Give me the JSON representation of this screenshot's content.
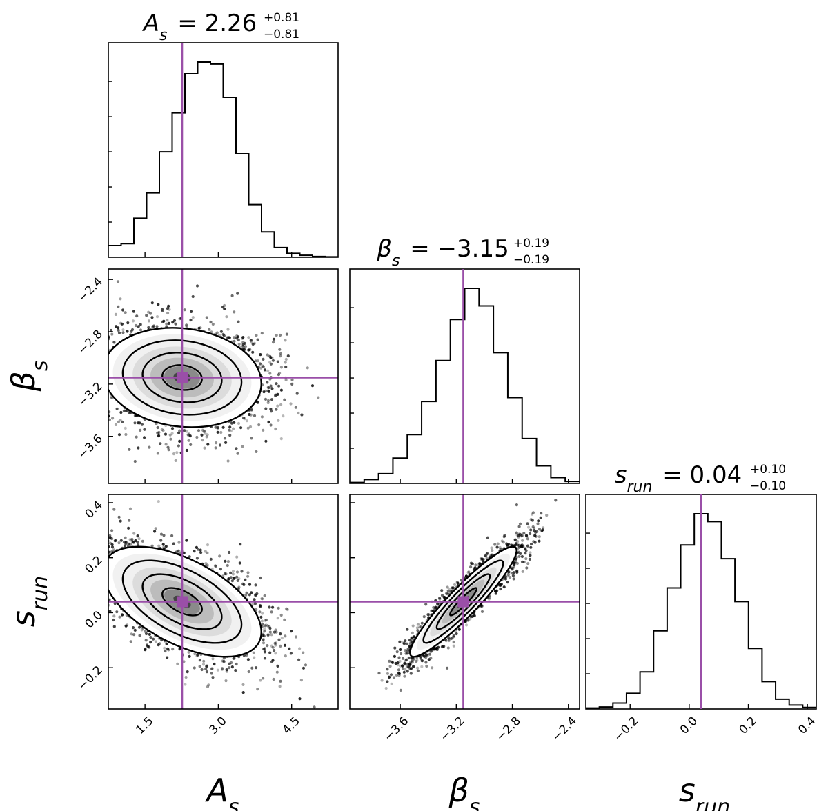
{
  "chart_data": {
    "type": "corner",
    "truth_color": "#9a4fa8",
    "parameters": [
      {
        "name": "A_s",
        "axis_label": "A",
        "axis_sub": "s",
        "axis_greek": false,
        "median": 2.26,
        "err_plus": 0.81,
        "err_minus": 0.81,
        "title_value": "2.26",
        "title_plus": "+0.81",
        "title_minus": "−0.81",
        "range": [
          0.75,
          5.45
        ],
        "ticks": [
          1.5,
          3.0,
          4.5
        ],
        "tick_labels": [
          "1.5",
          "3.0",
          "4.5"
        ],
        "hist": [
          0.06,
          0.07,
          0.2,
          0.33,
          0.54,
          0.74,
          0.94,
          1.0,
          0.99,
          0.82,
          0.53,
          0.27,
          0.13,
          0.05,
          0.02,
          0.01,
          0.004,
          0.002
        ]
      },
      {
        "name": "beta_s",
        "axis_label": "β",
        "axis_sub": "s",
        "axis_greek": true,
        "median": -3.15,
        "err_plus": 0.19,
        "err_minus": 0.19,
        "title_value": "−3.15",
        "title_plus": "+0.19",
        "title_minus": "−0.19",
        "range": [
          -3.96,
          -2.32
        ],
        "ticks": [
          -3.6,
          -3.2,
          -2.8,
          -2.4
        ],
        "tick_labels": [
          "−3.6",
          "−3.2",
          "−2.8",
          "−2.4"
        ],
        "hist": [
          0.005,
          0.02,
          0.05,
          0.13,
          0.25,
          0.42,
          0.63,
          0.84,
          1.0,
          0.91,
          0.67,
          0.44,
          0.23,
          0.09,
          0.03,
          0.01
        ]
      },
      {
        "name": "s_run",
        "axis_label": "s",
        "axis_sub": "run",
        "axis_greek": false,
        "median": 0.04,
        "err_plus": 0.1,
        "err_minus": 0.1,
        "title_value": "0.04",
        "title_plus": "+0.10",
        "title_minus": "−0.10",
        "range": [
          -0.35,
          0.43
        ],
        "ticks": [
          -0.2,
          0.0,
          0.2,
          0.4
        ],
        "tick_labels": [
          "−0.2",
          "0.0",
          "0.2",
          "0.4"
        ],
        "hist": [
          0.005,
          0.01,
          0.03,
          0.08,
          0.19,
          0.4,
          0.62,
          0.84,
          1.0,
          0.96,
          0.77,
          0.55,
          0.31,
          0.14,
          0.05,
          0.02,
          0.008
        ]
      }
    ],
    "pairs": [
      {
        "x": 0,
        "y": 1,
        "center": [
          2.26,
          -3.15
        ],
        "sigma": [
          0.81,
          0.19
        ],
        "rho": -0.12
      },
      {
        "x": 0,
        "y": 2,
        "center": [
          2.26,
          0.04
        ],
        "sigma": [
          0.81,
          0.1
        ],
        "rho": -0.55
      },
      {
        "x": 1,
        "y": 2,
        "center": [
          -3.15,
          0.04
        ],
        "sigma": [
          0.19,
          0.1
        ],
        "rho": 0.93
      }
    ],
    "contour_levels_sigma": [
      0.5,
      1.0,
      1.5,
      2.0
    ]
  }
}
